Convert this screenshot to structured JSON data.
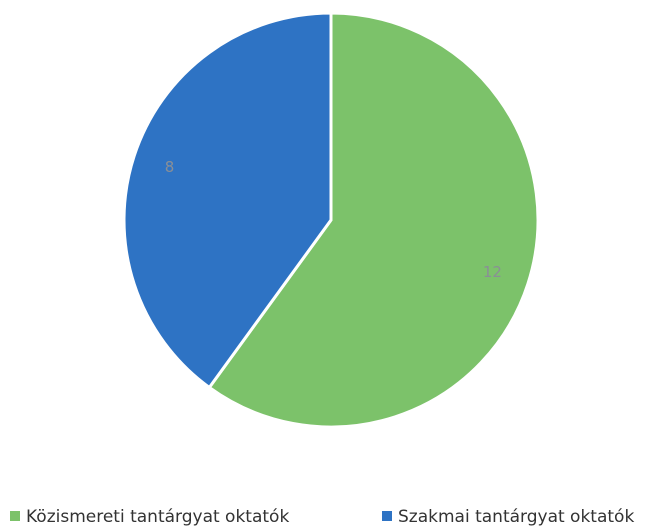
{
  "chart_data": {
    "type": "pie",
    "categories": [
      "Közismereti tantárgyat oktatók",
      "Szakmai tantárgyat oktatók"
    ],
    "values": [
      12,
      8
    ],
    "colors": [
      "#7cc26a",
      "#2e73c4"
    ],
    "legend": "bottom"
  }
}
